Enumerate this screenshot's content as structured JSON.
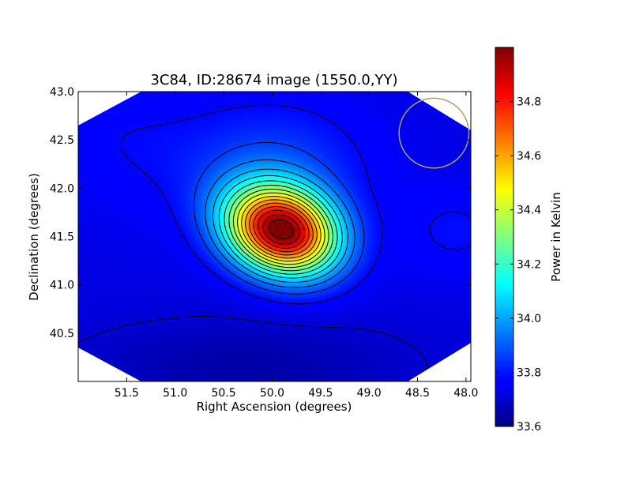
{
  "chart_data": {
    "type": "heatmap",
    "title": "3C84, ID:28674 image (1550.0,YY)",
    "xlabel": "Right Ascension (degrees)",
    "ylabel": "Declination (degrees)",
    "colorbar_label": "Power in Kelvin",
    "colormap": "jet",
    "xlim": [
      52.0,
      47.95
    ],
    "ylim": [
      40.0,
      43.0
    ],
    "x_ticks": [
      51.5,
      51.0,
      50.5,
      50.0,
      49.5,
      49.0,
      48.5,
      48.0
    ],
    "x_tick_labels": [
      "51.5",
      "51.0",
      "50.5",
      "50.0",
      "49.5",
      "49.0",
      "48.5",
      "48.0"
    ],
    "y_ticks": [
      40.5,
      41.0,
      41.5,
      42.0,
      42.5,
      43.0
    ],
    "y_tick_labels": [
      "40.5",
      "41.0",
      "41.5",
      "42.0",
      "42.5",
      "43.0"
    ],
    "colorbar_range": [
      33.6,
      35.0
    ],
    "colorbar_ticks": [
      33.6,
      33.8,
      34.0,
      34.2,
      34.4,
      34.6,
      34.8
    ],
    "colorbar_tick_labels": [
      "33.6",
      "33.8",
      "34.0",
      "34.2",
      "34.4",
      "34.6",
      "34.8"
    ],
    "peak": {
      "ra": 49.9,
      "dec": 41.56,
      "value": 34.98
    },
    "background_level": 33.72,
    "beam_circle": {
      "ra": 48.33,
      "dec": 42.57,
      "radius_deg": 0.36,
      "color": "#a8a26a"
    },
    "contour_color": "#000000"
  }
}
